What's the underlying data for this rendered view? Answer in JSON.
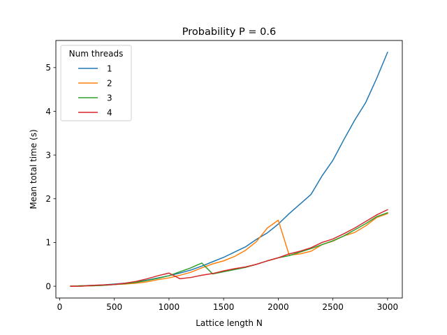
{
  "chart_data": {
    "type": "line",
    "title": "Probability P = 0.6",
    "xlabel": "Lattice length N",
    "ylabel": "Mean total time (s)",
    "xlim": [
      -35,
      3135
    ],
    "ylim": [
      -0.27,
      5.62
    ],
    "x_ticks": [
      0,
      500,
      1000,
      1500,
      2000,
      2500,
      3000
    ],
    "y_ticks": [
      0,
      1,
      2,
      3,
      4,
      5
    ],
    "x_tick_labels": [
      "0",
      "500",
      "1000",
      "1500",
      "2000",
      "2500",
      "3000"
    ],
    "y_tick_labels": [
      "0",
      "1",
      "2",
      "3",
      "4",
      "5"
    ],
    "grid": false,
    "legend": {
      "title": "Num threads",
      "placement": "top-left"
    },
    "x": [
      100,
      200,
      300,
      400,
      500,
      600,
      700,
      800,
      900,
      1000,
      1100,
      1200,
      1300,
      1400,
      1500,
      1600,
      1700,
      1800,
      1900,
      2000,
      2100,
      2200,
      2300,
      2400,
      2500,
      2600,
      2700,
      2800,
      2900,
      3000
    ],
    "series": [
      {
        "name": "1",
        "color": "#1f77b4",
        "values": [
          0.0,
          0.01,
          0.02,
          0.03,
          0.05,
          0.07,
          0.1,
          0.14,
          0.19,
          0.24,
          0.3,
          0.37,
          0.46,
          0.56,
          0.66,
          0.78,
          0.9,
          1.07,
          1.22,
          1.42,
          1.66,
          1.88,
          2.1,
          2.52,
          2.88,
          3.35,
          3.8,
          4.2,
          4.75,
          5.35
        ]
      },
      {
        "name": "2",
        "color": "#ff7f0e",
        "values": [
          0.0,
          0.01,
          0.01,
          0.02,
          0.04,
          0.05,
          0.07,
          0.1,
          0.15,
          0.19,
          0.25,
          0.32,
          0.42,
          0.51,
          0.58,
          0.68,
          0.82,
          1.02,
          1.33,
          1.51,
          0.71,
          0.74,
          0.8,
          0.95,
          1.03,
          1.15,
          1.23,
          1.38,
          1.57,
          1.66
        ]
      },
      {
        "name": "3",
        "color": "#2ca02c",
        "values": [
          0.0,
          0.01,
          0.01,
          0.02,
          0.04,
          0.06,
          0.09,
          0.13,
          0.18,
          0.24,
          0.33,
          0.42,
          0.53,
          0.28,
          0.33,
          0.38,
          0.43,
          0.5,
          0.58,
          0.65,
          0.7,
          0.78,
          0.86,
          0.95,
          1.04,
          1.15,
          1.29,
          1.43,
          1.59,
          1.68
        ]
      },
      {
        "name": "4",
        "color": "#d62728",
        "values": [
          0.0,
          0.0,
          0.02,
          0.03,
          0.04,
          0.07,
          0.11,
          0.17,
          0.24,
          0.3,
          0.17,
          0.2,
          0.25,
          0.29,
          0.35,
          0.4,
          0.44,
          0.5,
          0.58,
          0.65,
          0.74,
          0.8,
          0.88,
          1.0,
          1.08,
          1.2,
          1.33,
          1.48,
          1.63,
          1.75
        ]
      }
    ]
  }
}
